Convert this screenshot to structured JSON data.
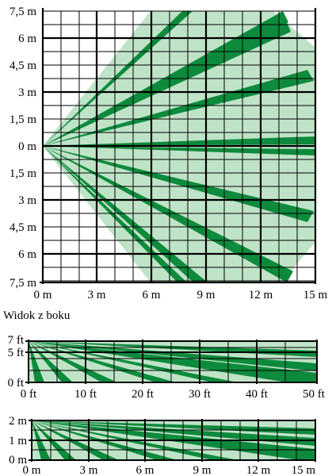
{
  "colors": {
    "zone": "#bfe3c7",
    "beam": "#0d8a3c",
    "grid": "#000000",
    "background": "#ffffff"
  },
  "top_view": {
    "y_labels": [
      "7,5 m",
      "6 m",
      "4,5 m",
      "3 m",
      "1,5 m",
      "0 m",
      "1,5 m",
      "3 m",
      "4,5 m",
      "6 m",
      "7,5 m"
    ],
    "x_labels": [
      "0 m",
      "3 m",
      "6 m",
      "9 m",
      "12 m",
      "15 m"
    ]
  },
  "side_caption": "Widok z boku",
  "side_view_ft": {
    "y_labels": [
      "7 ft",
      "5 ft",
      "0 ft"
    ],
    "x_labels": [
      "0 ft",
      "10 ft",
      "20 ft",
      "30 ft",
      "40 ft",
      "50 ft"
    ]
  },
  "side_view_m": {
    "y_labels": [
      "2 m",
      "1 m",
      "0 m"
    ],
    "x_labels": [
      "0 m",
      "3 m",
      "6 m",
      "9 m",
      "12 m",
      "15 m"
    ]
  }
}
